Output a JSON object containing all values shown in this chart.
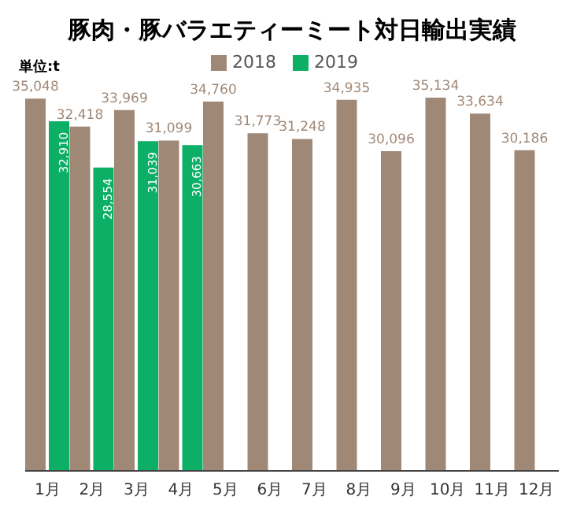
{
  "chart_data": {
    "type": "bar",
    "title": "豚肉・豚バラエティーミート対日輸出実績",
    "annotations": [
      "単位:t"
    ],
    "categories": [
      "1月",
      "2月",
      "3月",
      "4月",
      "5月",
      "6月",
      "7月",
      "8月",
      "9月",
      "10月",
      "11月",
      "12月"
    ],
    "series": [
      {
        "name": "2018",
        "color": "#a08877",
        "values": [
          35048,
          32418,
          33969,
          31099,
          34760,
          31773,
          31248,
          34935,
          30096,
          35134,
          33634,
          30186
        ],
        "value_labels": [
          "35,048",
          "32,418",
          "33,969",
          "31,099",
          "34,760",
          "31,773",
          "31,248",
          "34,935",
          "30,096",
          "35,134",
          "33,634",
          "30,186"
        ]
      },
      {
        "name": "2019",
        "color": "#0daf66",
        "values": [
          32910,
          28554,
          31039,
          30663,
          null,
          null,
          null,
          null,
          null,
          null,
          null,
          null
        ],
        "value_labels": [
          "32,910",
          "28,554",
          "31,039",
          "30,663",
          null,
          null,
          null,
          null,
          null,
          null,
          null,
          null
        ]
      }
    ],
    "legend": "top",
    "grid": false
  }
}
